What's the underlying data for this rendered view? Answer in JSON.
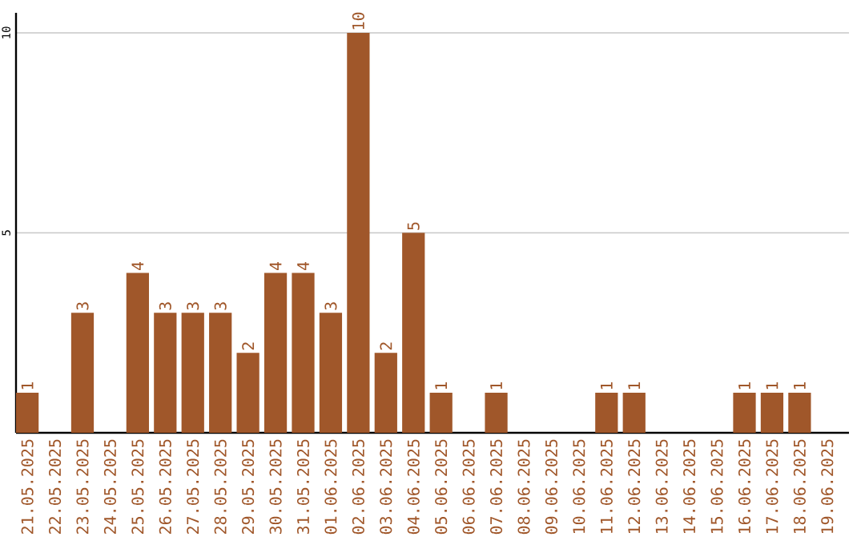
{
  "chart_data": {
    "type": "bar",
    "categories": [
      "21.05.2025",
      "22.05.2025",
      "23.05.2025",
      "24.05.2025",
      "25.05.2025",
      "26.05.2025",
      "27.05.2025",
      "28.05.2025",
      "29.05.2025",
      "30.05.2025",
      "31.05.2025",
      "01.06.2025",
      "02.06.2025",
      "03.06.2025",
      "04.06.2025",
      "05.06.2025",
      "06.06.2025",
      "07.06.2025",
      "08.06.2025",
      "09.06.2025",
      "10.06.2025",
      "11.06.2025",
      "12.06.2025",
      "13.06.2025",
      "14.06.2025",
      "15.06.2025",
      "16.06.2025",
      "17.06.2025",
      "18.06.2025",
      "19.06.2025"
    ],
    "values": [
      1,
      0,
      3,
      0,
      4,
      3,
      3,
      3,
      2,
      4,
      4,
      3,
      10,
      2,
      5,
      1,
      0,
      1,
      0,
      0,
      0,
      1,
      1,
      0,
      0,
      0,
      1,
      1,
      1,
      0
    ],
    "value_labels": [
      "1",
      null,
      "3",
      null,
      "4",
      "3",
      "3",
      "3",
      "2",
      "4",
      "4",
      "3",
      "10",
      "2",
      "5",
      "1",
      null,
      "1",
      null,
      null,
      null,
      "1",
      "1",
      null,
      null,
      null,
      "1",
      "1",
      "1",
      null
    ],
    "color": "#a0572a",
    "ylim": [
      0,
      10.5
    ],
    "yticks": [
      5,
      10
    ],
    "grid": "y"
  }
}
